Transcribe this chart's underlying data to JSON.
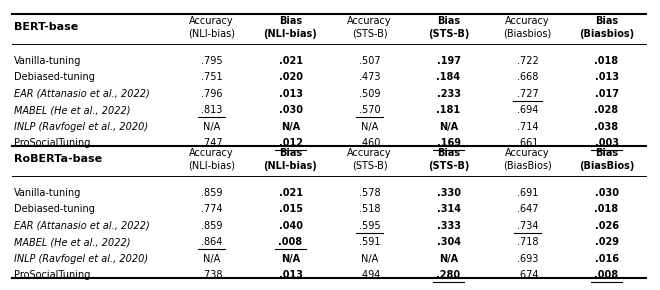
{
  "title_bert": "BERT-base",
  "title_roberta": "RoBERTa-base",
  "col_headers_line1": [
    "Accuracy",
    "Bias",
    "Accuracy",
    "Bias",
    "Accuracy",
    "Bias"
  ],
  "col_headers_line2_bert": [
    "(NLI-bias)",
    "(NLI-bias)",
    "(STS-B)",
    "(STS-B)",
    "(Biasbios)",
    "(Biasbios)"
  ],
  "col_headers_line2_roberta": [
    "(NLI-bias)",
    "(NLI-bias)",
    "(STS-B)",
    "(STS-B)",
    "(BiasBios)",
    "(BiasBios)"
  ],
  "rows_bert": [
    {
      "method": "Vanilla-tuning",
      "italic": false,
      "values": [
        ".795",
        ".021",
        ".507",
        ".197",
        ".722",
        ".018"
      ],
      "bold": [
        false,
        true,
        false,
        true,
        false,
        true
      ],
      "underline": [
        false,
        false,
        false,
        false,
        false,
        false
      ]
    },
    {
      "method": "Debiased-tuning",
      "italic": false,
      "values": [
        ".751",
        ".020",
        ".473",
        ".184",
        ".668",
        ".013"
      ],
      "bold": [
        false,
        true,
        false,
        true,
        false,
        true
      ],
      "underline": [
        false,
        false,
        false,
        false,
        false,
        false
      ]
    },
    {
      "method": "EAR (Attanasio et al., 2022)",
      "italic": true,
      "values": [
        ".796",
        ".013",
        ".509",
        ".233",
        ".727",
        ".017"
      ],
      "bold": [
        false,
        true,
        false,
        true,
        false,
        true
      ],
      "underline": [
        false,
        false,
        false,
        false,
        true,
        false
      ]
    },
    {
      "method": "MABEL (He et al., 2022)",
      "italic": true,
      "values": [
        ".813",
        ".030",
        ".570",
        ".181",
        ".694",
        ".028"
      ],
      "bold": [
        false,
        true,
        false,
        true,
        false,
        true
      ],
      "underline": [
        true,
        false,
        true,
        false,
        false,
        false
      ]
    },
    {
      "method": "INLP (Ravfogel et al., 2020)",
      "italic": true,
      "values": [
        "N/A",
        "N/A",
        "N/A",
        "N/A",
        ".714",
        ".038"
      ],
      "bold": [
        false,
        true,
        false,
        true,
        false,
        true
      ],
      "underline": [
        false,
        false,
        false,
        false,
        false,
        false
      ]
    },
    {
      "method": "ProSocialTuning",
      "italic": false,
      "values": [
        ".747",
        ".012",
        ".460",
        ".169",
        ".661",
        ".003"
      ],
      "bold": [
        false,
        true,
        false,
        true,
        false,
        true
      ],
      "underline": [
        false,
        true,
        false,
        true,
        false,
        true
      ]
    }
  ],
  "rows_roberta": [
    {
      "method": "Vanilla-tuning",
      "italic": false,
      "values": [
        ".859",
        ".021",
        ".578",
        ".330",
        ".691",
        ".030"
      ],
      "bold": [
        false,
        true,
        false,
        true,
        false,
        true
      ],
      "underline": [
        false,
        false,
        false,
        false,
        false,
        false
      ]
    },
    {
      "method": "Debiased-tuning",
      "italic": false,
      "values": [
        ".774",
        ".015",
        ".518",
        ".314",
        ".647",
        ".018"
      ],
      "bold": [
        false,
        true,
        false,
        true,
        false,
        true
      ],
      "underline": [
        false,
        false,
        false,
        false,
        false,
        false
      ]
    },
    {
      "method": "EAR (Attanasio et al., 2022)",
      "italic": true,
      "values": [
        ".859",
        ".040",
        ".595",
        ".333",
        ".734",
        ".026"
      ],
      "bold": [
        false,
        true,
        false,
        true,
        false,
        true
      ],
      "underline": [
        false,
        false,
        true,
        false,
        true,
        false
      ]
    },
    {
      "method": "MABEL (He et al., 2022)",
      "italic": true,
      "values": [
        ".864",
        ".008",
        ".591",
        ".304",
        ".718",
        ".029"
      ],
      "bold": [
        false,
        true,
        false,
        true,
        false,
        true
      ],
      "underline": [
        true,
        true,
        false,
        false,
        false,
        false
      ]
    },
    {
      "method": "INLP (Ravfogel et al., 2020)",
      "italic": true,
      "values": [
        "N/A",
        "N/A",
        "N/A",
        "N/A",
        ".693",
        ".016"
      ],
      "bold": [
        false,
        true,
        false,
        true,
        false,
        true
      ],
      "underline": [
        false,
        false,
        false,
        false,
        false,
        false
      ]
    },
    {
      "method": "ProSocialTuning",
      "italic": false,
      "values": [
        ".738",
        ".013",
        ".494",
        ".280",
        ".674",
        ".008"
      ],
      "bold": [
        false,
        true,
        false,
        true,
        false,
        true
      ],
      "underline": [
        false,
        false,
        false,
        true,
        false,
        true
      ]
    }
  ],
  "bg_color": "#ffffff",
  "font_size": 7.0,
  "title_font_size": 8.0
}
